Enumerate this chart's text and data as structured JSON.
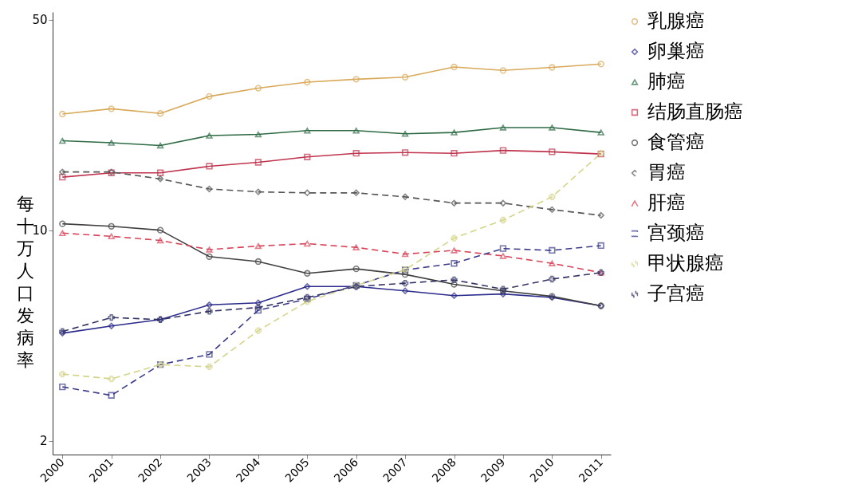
{
  "chart_data": {
    "type": "line",
    "ylabel": "每十万人口发病率",
    "categories": [
      "2000",
      "2001",
      "2002",
      "2003",
      "2004",
      "2005",
      "2006",
      "2007",
      "2008",
      "2009",
      "2010",
      "2011"
    ],
    "log": true,
    "ylim": [
      1.8,
      53
    ],
    "yticks": [
      2,
      10,
      50
    ],
    "grid": false,
    "legend": "right",
    "series": [
      {
        "name": "乳腺癌",
        "color": "#d9a95a",
        "marker": "circle",
        "line_style": "solid",
        "values": [
          24.3,
          25.3,
          24.4,
          27.8,
          29.6,
          31.0,
          31.7,
          32.2,
          34.8,
          33.9,
          34.7,
          35.6
        ]
      },
      {
        "name": "卵巢癌",
        "color": "#2b2b8c",
        "marker": "diamond",
        "line_style": "solid",
        "values": [
          4.55,
          4.81,
          5.05,
          5.65,
          5.74,
          6.5,
          6.5,
          6.29,
          6.06,
          6.14,
          5.98,
          5.61
        ]
      },
      {
        "name": "肺癌",
        "color": "#2e6b45",
        "marker": "triangle",
        "line_style": "solid",
        "values": [
          19.8,
          19.5,
          19.1,
          20.6,
          20.8,
          21.4,
          21.4,
          20.9,
          21.1,
          21.9,
          21.9,
          21.1
        ]
      },
      {
        "name": "结肠直肠癌",
        "color": "#c0334d",
        "marker": "square",
        "line_style": "solid",
        "values": [
          15.0,
          15.5,
          15.5,
          16.3,
          16.8,
          17.5,
          18.0,
          18.1,
          18.0,
          18.4,
          18.2,
          17.9
        ]
      },
      {
        "name": "食管癌",
        "color": "#404040",
        "marker": "circle",
        "line_style": "solid",
        "values": [
          10.5,
          10.3,
          10.0,
          8.17,
          7.87,
          7.19,
          7.44,
          7.13,
          6.61,
          6.29,
          6.03,
          5.61
        ]
      },
      {
        "name": "胃癌",
        "color": "#555555",
        "marker": "diamond",
        "line_style": "dashed",
        "values": [
          15.6,
          15.6,
          14.8,
          13.7,
          13.4,
          13.3,
          13.3,
          12.9,
          12.3,
          12.3,
          11.7,
          11.2
        ]
      },
      {
        "name": "肝癌",
        "color": "#d9445a",
        "marker": "triangle",
        "line_style": "dashed",
        "values": [
          9.78,
          9.54,
          9.25,
          8.62,
          8.86,
          9.02,
          8.77,
          8.33,
          8.57,
          8.21,
          7.76,
          7.23
        ]
      },
      {
        "name": "宫颈癌",
        "color": "#3a3a8a",
        "marker": "square",
        "line_style": "dashed",
        "values": [
          3.02,
          2.83,
          3.58,
          3.87,
          5.42,
          5.91,
          6.56,
          7.38,
          7.76,
          8.69,
          8.57,
          8.89
        ]
      },
      {
        "name": "甲状腺癌",
        "color": "#d4d48a",
        "marker": "cross",
        "line_style": "dashed",
        "values": [
          3.33,
          3.21,
          3.58,
          3.52,
          4.64,
          5.8,
          6.55,
          7.39,
          9.41,
          10.8,
          12.9,
          18.0
        ]
      },
      {
        "name": "子宫癌",
        "color": "#333366",
        "marker": "cross",
        "line_style": "dashed",
        "values": [
          4.61,
          5.13,
          5.05,
          5.38,
          5.54,
          5.98,
          6.5,
          6.67,
          6.84,
          6.37,
          6.88,
          7.23
        ]
      }
    ]
  }
}
